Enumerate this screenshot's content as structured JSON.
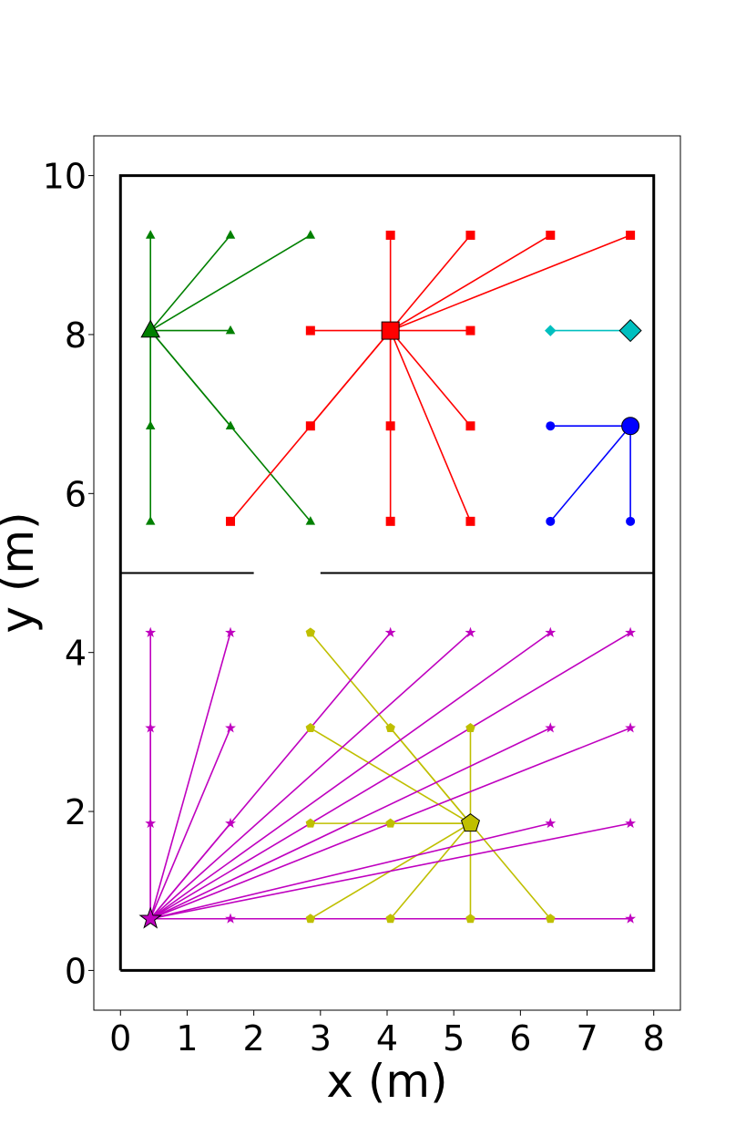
{
  "chart_data": {
    "type": "scatter",
    "xlabel": "x (m)",
    "ylabel": "y (m)",
    "xlim": [
      -0.4,
      8.4
    ],
    "ylim": [
      -0.5,
      10.5
    ],
    "xticks": [
      0,
      1,
      2,
      3,
      4,
      5,
      6,
      7,
      8
    ],
    "yticks": [
      0,
      2,
      4,
      6,
      8,
      10
    ],
    "grid": false,
    "room_walls": [
      {
        "points": [
          [
            0,
            0
          ],
          [
            8,
            0
          ],
          [
            8,
            10
          ],
          [
            0,
            10
          ],
          [
            0,
            0
          ]
        ]
      },
      {
        "points": [
          [
            0,
            5
          ],
          [
            2,
            5
          ]
        ]
      },
      {
        "points": [
          [
            3,
            5
          ],
          [
            8,
            5
          ]
        ]
      }
    ],
    "series": [
      {
        "color": "#008000",
        "marker": "triangle",
        "hub": [
          0.45,
          8.05
        ],
        "points": [
          [
            0.45,
            9.25
          ],
          [
            1.65,
            9.25
          ],
          [
            2.85,
            9.25
          ],
          [
            1.65,
            8.05
          ],
          [
            0.45,
            6.85
          ],
          [
            1.65,
            6.85
          ],
          [
            0.45,
            5.65
          ],
          [
            2.85,
            5.65
          ]
        ]
      },
      {
        "color": "#ff0000",
        "marker": "square",
        "hub": [
          4.05,
          8.05
        ],
        "points": [
          [
            4.05,
            9.25
          ],
          [
            5.25,
            9.25
          ],
          [
            6.45,
            9.25
          ],
          [
            7.65,
            9.25
          ],
          [
            2.85,
            8.05
          ],
          [
            5.25,
            8.05
          ],
          [
            2.85,
            6.85
          ],
          [
            4.05,
            6.85
          ],
          [
            5.25,
            6.85
          ],
          [
            1.65,
            5.65
          ],
          [
            4.05,
            5.65
          ],
          [
            5.25,
            5.65
          ]
        ]
      },
      {
        "color": "#00bfbf",
        "marker": "diamond",
        "hub": [
          7.65,
          8.05
        ],
        "points": [
          [
            6.45,
            8.05
          ]
        ]
      },
      {
        "color": "#0000ff",
        "marker": "circle",
        "hub": [
          7.65,
          6.85
        ],
        "points": [
          [
            6.45,
            6.85
          ],
          [
            6.45,
            5.65
          ],
          [
            7.65,
            5.65
          ]
        ]
      },
      {
        "color": "#bfbf00",
        "marker": "pentagon",
        "hub": [
          5.25,
          1.85
        ],
        "points": [
          [
            2.85,
            4.25
          ],
          [
            2.85,
            3.05
          ],
          [
            4.05,
            3.05
          ],
          [
            5.25,
            3.05
          ],
          [
            2.85,
            1.85
          ],
          [
            4.05,
            1.85
          ],
          [
            2.85,
            0.65
          ],
          [
            4.05,
            0.65
          ],
          [
            5.25,
            0.65
          ],
          [
            6.45,
            0.65
          ]
        ]
      },
      {
        "color": "#bf00bf",
        "marker": "star",
        "hub": [
          0.45,
          0.65
        ],
        "points": [
          [
            0.45,
            4.25
          ],
          [
            1.65,
            4.25
          ],
          [
            4.05,
            4.25
          ],
          [
            5.25,
            4.25
          ],
          [
            6.45,
            4.25
          ],
          [
            7.65,
            4.25
          ],
          [
            0.45,
            3.05
          ],
          [
            1.65,
            3.05
          ],
          [
            6.45,
            3.05
          ],
          [
            7.65,
            3.05
          ],
          [
            0.45,
            1.85
          ],
          [
            1.65,
            1.85
          ],
          [
            6.45,
            1.85
          ],
          [
            7.65,
            1.85
          ],
          [
            1.65,
            0.65
          ],
          [
            7.65,
            0.65
          ]
        ]
      }
    ]
  }
}
